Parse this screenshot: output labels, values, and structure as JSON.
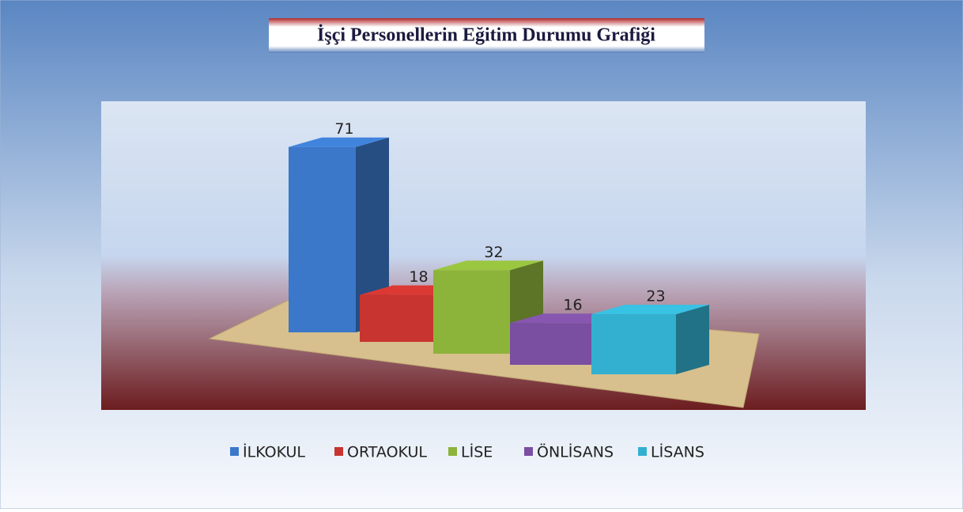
{
  "chart_data": {
    "type": "bar3d",
    "title": "İşçi Personellerin Eğitim Durumu Grafiği",
    "series": [
      {
        "name": "İLKOKUL",
        "color": "#3b78c9",
        "values": [
          71
        ]
      },
      {
        "name": "ORTAOKUL",
        "color": "#c8342f",
        "values": [
          18
        ]
      },
      {
        "name": "LİSE",
        "color": "#8db43a",
        "values": [
          32
        ]
      },
      {
        "name": "ÖNLİSANS",
        "color": "#7a4ea0",
        "values": [
          16
        ]
      },
      {
        "name": "LİSANS",
        "color": "#33b0cf",
        "values": [
          23
        ]
      }
    ],
    "legend": "bottom"
  }
}
